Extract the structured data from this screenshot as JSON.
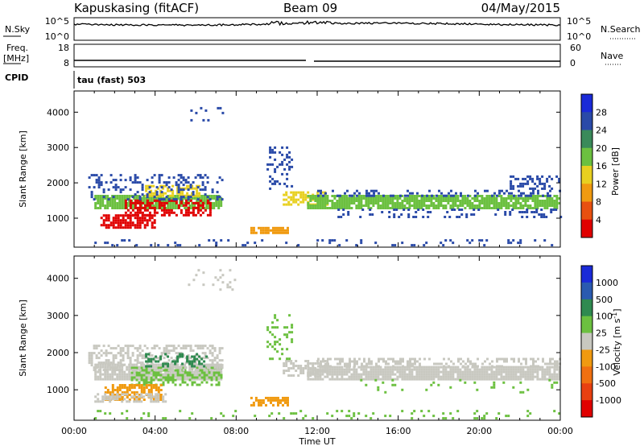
{
  "header": {
    "station": "Kapuskasing (fitACF)",
    "beam": "Beam 09",
    "date": "04/May/2015"
  },
  "strips": {
    "nsky_label": "N.Sky",
    "nsky_top": "10^5",
    "nsky_bottom": "10^0",
    "nsearch_label": "N.Search",
    "nsearch_top": "10^5",
    "nsearch_bottom": "10^0",
    "freq_label": "Freq.",
    "freq_unit": "[MHz]",
    "freq_top": "18",
    "freq_bottom": "8",
    "nave_label": "Nave",
    "nave_top": "60",
    "nave_bottom": "0",
    "cpid_label": "CPID",
    "cpid_value": "tau (fast) 503"
  },
  "colors": {
    "power": [
      "#1a2ad8",
      "#2a4aa8",
      "#3a8a5a",
      "#6cc040",
      "#e8d020",
      "#f09a10",
      "#e85010",
      "#e00000"
    ],
    "velocity": [
      "#1a2ad8",
      "#2a5ab0",
      "#2f8a50",
      "#6cc040",
      "#c8c8c0",
      "#f09a10",
      "#f07010",
      "#e84010",
      "#e00000"
    ]
  },
  "chart_data": [
    {
      "type": "heatmap",
      "title": "Power",
      "xlabel": "Time UT",
      "ylabel": "Slant Range [km]",
      "colorbar_label": "Power [dB]",
      "x_ticks": [
        "00:00",
        "04:00",
        "08:00",
        "12:00",
        "16:00",
        "20:00",
        "00:00"
      ],
      "y_ticks": [
        1000,
        2000,
        3000,
        4000
      ],
      "ylim": [
        180,
        4600
      ],
      "xlim_hours": [
        0,
        24
      ],
      "colorbar_ticks": [
        4,
        8,
        12,
        16,
        20,
        24,
        28
      ],
      "regions": [
        {
          "t": [
            1.0,
            7.3
          ],
          "r": [
            1250,
            1650
          ],
          "color": "#6cc040",
          "density": 0.85
        },
        {
          "t": [
            1.3,
            4.0
          ],
          "r": [
            700,
            1100
          ],
          "color": "#e00000",
          "density": 0.75
        },
        {
          "t": [
            2.5,
            6.7
          ],
          "r": [
            1050,
            1500
          ],
          "color": "#e00000",
          "density": 0.6
        },
        {
          "t": [
            3.5,
            6.2
          ],
          "r": [
            1600,
            1900
          ],
          "color": "#e8d020",
          "density": 0.55
        },
        {
          "t": [
            0.7,
            7.3
          ],
          "r": [
            1500,
            2200
          ],
          "color": "#2a4aa8",
          "density": 0.25
        },
        {
          "t": [
            8.7,
            10.5
          ],
          "r": [
            550,
            750
          ],
          "color": "#f09a10",
          "density": 0.8
        },
        {
          "t": [
            10.3,
            12.5
          ],
          "r": [
            1350,
            1750
          ],
          "color": "#e8d020",
          "density": 0.55
        },
        {
          "t": [
            9.5,
            10.8
          ],
          "r": [
            1800,
            3000
          ],
          "color": "#2a4aa8",
          "density": 0.25
        },
        {
          "t": [
            11.5,
            24.0
          ],
          "r": [
            1250,
            1600
          ],
          "color": "#6cc040",
          "density": 0.85
        },
        {
          "t": [
            12.0,
            24.0
          ],
          "r": [
            1600,
            1800
          ],
          "color": "#2a4aa8",
          "density": 0.35
        },
        {
          "t": [
            13.0,
            24.0
          ],
          "r": [
            1000,
            1250
          ],
          "color": "#2a4aa8",
          "density": 0.2
        },
        {
          "t": [
            21.5,
            24.0
          ],
          "r": [
            1800,
            2200
          ],
          "color": "#2a4aa8",
          "density": 0.35
        },
        {
          "t": [
            5.5,
            8.0
          ],
          "r": [
            3600,
            4100
          ],
          "color": "#2a4aa8",
          "density": 0.08
        },
        {
          "t": [
            1.0,
            24.0
          ],
          "r": [
            200,
            400
          ],
          "color": "#2a4aa8",
          "density": 0.12
        }
      ]
    },
    {
      "type": "heatmap",
      "title": "Velocity",
      "xlabel": "Time UT",
      "ylabel": "Slant Range [km]",
      "colorbar_label": "Velocity [m s^-1]",
      "x_ticks": [
        "00:00",
        "04:00",
        "08:00",
        "12:00",
        "16:00",
        "20:00",
        "00:00"
      ],
      "y_ticks": [
        1000,
        2000,
        3000,
        4000
      ],
      "ylim": [
        180,
        4600
      ],
      "xlim_hours": [
        0,
        24
      ],
      "colorbar_ticks": [
        1000,
        500,
        100,
        25,
        -25,
        -100,
        -500,
        -1000
      ],
      "regions": [
        {
          "t": [
            1.0,
            7.3
          ],
          "r": [
            1250,
            1650
          ],
          "color": "#c8c8c0",
          "density": 0.9
        },
        {
          "t": [
            2.8,
            7.3
          ],
          "r": [
            1100,
            1600
          ],
          "color": "#6cc040",
          "density": 0.5
        },
        {
          "t": [
            1.5,
            4.3
          ],
          "r": [
            700,
            1100
          ],
          "color": "#f09a10",
          "density": 0.7
        },
        {
          "t": [
            1.0,
            4.5
          ],
          "r": [
            650,
            850
          ],
          "color": "#c8c8c0",
          "density": 0.6
        },
        {
          "t": [
            0.7,
            7.3
          ],
          "r": [
            1500,
            2200
          ],
          "color": "#c8c8c0",
          "density": 0.45
        },
        {
          "t": [
            3.5,
            6.5
          ],
          "r": [
            1600,
            1950
          ],
          "color": "#2f8a50",
          "density": 0.35
        },
        {
          "t": [
            8.7,
            10.5
          ],
          "r": [
            550,
            750
          ],
          "color": "#f09a10",
          "density": 0.8
        },
        {
          "t": [
            10.3,
            12.5
          ],
          "r": [
            1350,
            1750
          ],
          "color": "#c8c8c0",
          "density": 0.6
        },
        {
          "t": [
            9.5,
            10.8
          ],
          "r": [
            1800,
            3000
          ],
          "color": "#6cc040",
          "density": 0.15
        },
        {
          "t": [
            11.5,
            24.0
          ],
          "r": [
            1250,
            1600
          ],
          "color": "#c8c8c0",
          "density": 0.9
        },
        {
          "t": [
            12.0,
            24.0
          ],
          "r": [
            1600,
            1850
          ],
          "color": "#c8c8c0",
          "density": 0.4
        },
        {
          "t": [
            14.0,
            24.0
          ],
          "r": [
            900,
            1250
          ],
          "color": "#6cc040",
          "density": 0.08
        },
        {
          "t": [
            5.5,
            8.0
          ],
          "r": [
            3600,
            4200
          ],
          "color": "#c8c8c0",
          "density": 0.08
        },
        {
          "t": [
            1.0,
            24.0
          ],
          "r": [
            200,
            400
          ],
          "color": "#6cc040",
          "density": 0.1
        }
      ]
    }
  ]
}
